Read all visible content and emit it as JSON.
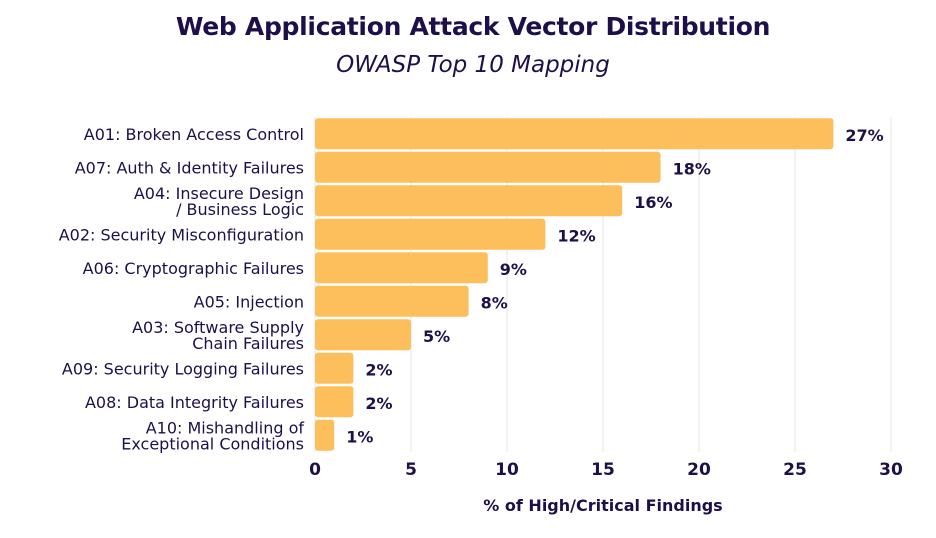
{
  "chart_data": {
    "type": "bar",
    "orientation": "horizontal",
    "title": "Web Application Attack Vector Distribution",
    "subtitle": "OWASP Top 10 Mapping",
    "xlabel": "% of High/Critical Findings",
    "ylabel": "",
    "xlim": [
      0,
      30
    ],
    "xticks": [
      "0",
      "5",
      "10",
      "15",
      "20",
      "25",
      "30"
    ],
    "grid": true,
    "bar_color": "#fdbe5c",
    "text_color": "#1e0f4a",
    "categories": [
      [
        "A01: Broken Access Control"
      ],
      [
        "A07: Auth & Identity Failures"
      ],
      [
        "A04:  Insecure Design",
        "/ Business Logic"
      ],
      [
        "A02: Security Misconfiguration"
      ],
      [
        "A06: Cryptographic Failures"
      ],
      [
        "A05: Injection"
      ],
      [
        "A03: Software Supply",
        "Chain Failures"
      ],
      [
        "A09: Security Logging Failures"
      ],
      [
        "A08: Data Integrity Failures"
      ],
      [
        "A10: Mishandling of",
        "Exceptional Conditions"
      ]
    ],
    "values": [
      27,
      18,
      16,
      12,
      9,
      8,
      5,
      2,
      2,
      1
    ],
    "data_labels": [
      "27%",
      "18%",
      "16%",
      "12%",
      "9%",
      "8%",
      "5%",
      "2%",
      "2%",
      "1%"
    ]
  }
}
